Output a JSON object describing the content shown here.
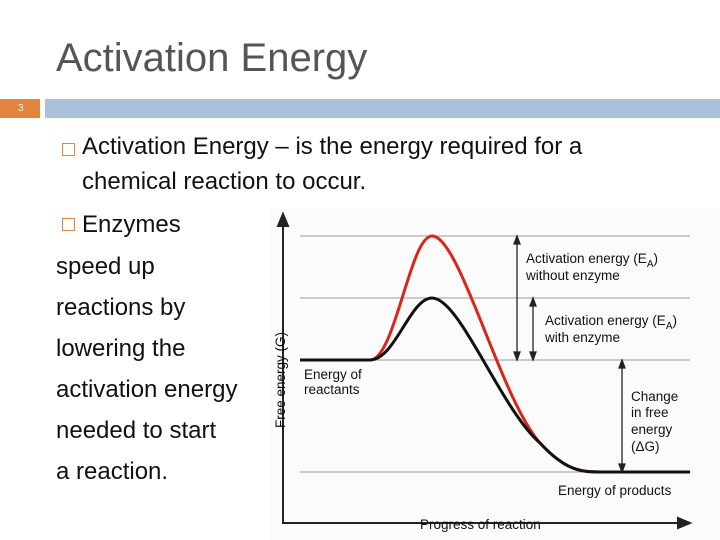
{
  "title": "Activation Energy",
  "slide_number": "3",
  "bullets": [
    {
      "lines": [
        "Activation Energy – is the energy required for a",
        "chemical reaction to occur."
      ]
    },
    {
      "lines": [
        "Enzymes",
        "speed up",
        "reactions by",
        "lowering the",
        "activation energy",
        "needed to start",
        "a reaction."
      ]
    }
  ],
  "diagram": {
    "y_axis_label": "Free energy (G)",
    "x_axis_label": "Progress of reaction",
    "ea_without": {
      "prefix": "Activation energy (E",
      "sub": "A",
      "suffix": ")",
      "line2": "without enzyme"
    },
    "ea_with": {
      "prefix": "Activation energy (E",
      "sub": "A",
      "suffix": ")",
      "line2": "with enzyme"
    },
    "reactants": [
      "Energy of",
      "reactants"
    ],
    "change": [
      "Change",
      "in free",
      "energy",
      "(ΔG)"
    ],
    "products": "Energy of products"
  }
}
